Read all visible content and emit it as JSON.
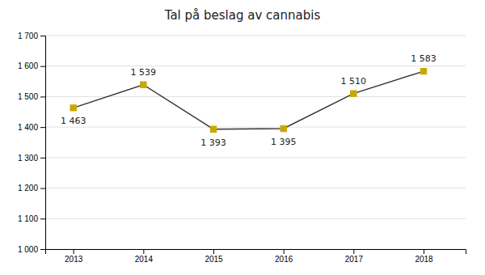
{
  "chart_data": {
    "type": "line",
    "title": "Tal på beslag av cannabis",
    "x": [
      2013,
      2014,
      2015,
      2016,
      2017,
      2018
    ],
    "values": [
      1463,
      1539,
      1393,
      1395,
      1510,
      1583
    ],
    "value_labels": [
      "1 463",
      "1 539",
      "1 393",
      "1 395",
      "1 510",
      "1 583"
    ],
    "data_labels": true,
    "color": "#C9A800",
    "marker": "diamond",
    "xlim": [
      2012.6,
      2018.6
    ],
    "xticks": [
      2013,
      2014,
      2015,
      2016,
      2017,
      2018
    ],
    "ylim": [
      1000,
      1700
    ],
    "yticks": [
      {
        "value": 1000,
        "label": "1 000"
      },
      {
        "value": 1100,
        "label": "1 100"
      },
      {
        "value": 1200,
        "label": "1 200"
      },
      {
        "value": 1300,
        "label": "1 300"
      },
      {
        "value": 1400,
        "label": "1 400"
      },
      {
        "value": 1500,
        "label": "1 500"
      },
      {
        "value": 1600,
        "label": "1 600"
      },
      {
        "value": 1700,
        "label": "1 700"
      }
    ],
    "grid": true
  }
}
